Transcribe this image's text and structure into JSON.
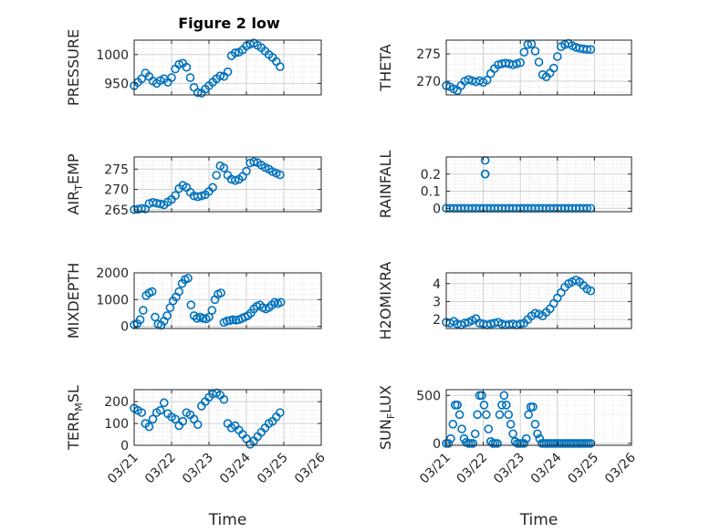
{
  "title": "Figure 2 low",
  "xlabel": "Time",
  "x_tick_labels": [
    "03/21",
    "03/22",
    "03/23",
    "03/24",
    "03/25",
    "03/26"
  ],
  "marker_color": "#0072bd",
  "chart_data": [
    {
      "type": "scatter",
      "ylabel": "PRESSURE",
      "ylim": [
        930,
        1025
      ],
      "yticks": [
        950,
        1000
      ],
      "ytick_labels": [
        "950",
        "1000"
      ],
      "x": [
        0,
        0.1,
        0.2,
        0.3,
        0.4,
        0.5,
        0.6,
        0.7,
        0.8,
        0.9,
        1.0,
        1.1,
        1.2,
        1.3,
        1.4,
        1.5,
        1.6,
        1.7,
        1.8,
        1.9,
        2.0,
        2.1,
        2.2,
        2.3,
        2.4,
        2.5,
        2.6,
        2.7,
        2.8,
        2.9,
        3.0,
        3.1,
        3.2,
        3.3,
        3.4,
        3.5,
        3.6,
        3.7,
        3.8,
        3.9
      ],
      "y": [
        946,
        952,
        958,
        968,
        962,
        954,
        950,
        955,
        958,
        952,
        960,
        975,
        983,
        985,
        978,
        960,
        943,
        934,
        933,
        940,
        946,
        952,
        958,
        963,
        962,
        970,
        998,
        1003,
        1004,
        1008,
        1015,
        1018,
        1020,
        1016,
        1012,
        1006,
        1000,
        995,
        988,
        979
      ]
    },
    {
      "type": "scatter",
      "ylabel": "THETA",
      "ylim": [
        267.5,
        277.5
      ],
      "yticks": [
        270,
        275
      ],
      "ytick_labels": [
        "270",
        "275"
      ],
      "x": [
        0,
        0.1,
        0.2,
        0.3,
        0.4,
        0.5,
        0.6,
        0.7,
        0.8,
        0.9,
        1.0,
        1.1,
        1.2,
        1.3,
        1.4,
        1.5,
        1.6,
        1.7,
        1.8,
        1.9,
        2.0,
        2.1,
        2.2,
        2.3,
        2.4,
        2.5,
        2.6,
        2.7,
        2.8,
        2.9,
        3.0,
        3.1,
        3.2,
        3.3,
        3.4,
        3.5,
        3.6,
        3.7,
        3.8,
        3.9
      ],
      "y": [
        269.2,
        269,
        268.6,
        268.3,
        269.2,
        270,
        270.3,
        270.1,
        269.9,
        270.1,
        269.8,
        270.2,
        271.4,
        272.3,
        273,
        273.2,
        273.3,
        273.2,
        273,
        273.2,
        273.4,
        275.3,
        276.7,
        276.8,
        275.5,
        273.5,
        271.2,
        270.8,
        271.5,
        272.4,
        274.5,
        276.3,
        276.7,
        276.9,
        276.5,
        276.2,
        276,
        275.9,
        275.8,
        275.8
      ]
    },
    {
      "type": "scatter",
      "ylabel": "AIR_TEMP",
      "ylim": [
        264.5,
        278
      ],
      "yticks": [
        265,
        270,
        275
      ],
      "ytick_labels": [
        "265",
        "270",
        "275"
      ],
      "x": [
        0,
        0.1,
        0.2,
        0.3,
        0.4,
        0.5,
        0.6,
        0.7,
        0.8,
        0.9,
        1.0,
        1.1,
        1.2,
        1.3,
        1.4,
        1.5,
        1.6,
        1.7,
        1.8,
        1.9,
        2.0,
        2.1,
        2.2,
        2.3,
        2.4,
        2.5,
        2.6,
        2.7,
        2.8,
        2.9,
        3.0,
        3.1,
        3.2,
        3.3,
        3.4,
        3.5,
        3.6,
        3.7,
        3.8,
        3.9
      ],
      "y": [
        265,
        265.1,
        265.3,
        265.2,
        266.5,
        266.8,
        266.6,
        266.4,
        266.2,
        266.9,
        267.5,
        268.5,
        270.2,
        271,
        270.5,
        269.3,
        268.4,
        268.2,
        268.4,
        268.7,
        269.5,
        270.5,
        273.5,
        275.8,
        275.3,
        273.5,
        272.5,
        272.2,
        272.5,
        273.2,
        274.5,
        276.5,
        276.8,
        276.6,
        276,
        275.4,
        275,
        274.4,
        274,
        273.6
      ]
    },
    {
      "type": "scatter",
      "ylabel": "RAINFALL",
      "ylim": [
        -0.02,
        0.3
      ],
      "yticks": [
        0,
        0.1,
        0.2
      ],
      "ytick_labels": [
        "0",
        "0.1",
        "0.2"
      ],
      "x": [
        0,
        0.1,
        0.2,
        0.3,
        0.4,
        0.5,
        0.6,
        0.7,
        0.8,
        0.9,
        1.0,
        1.05,
        1.05,
        1.05,
        1.1,
        1.2,
        1.3,
        1.4,
        1.5,
        1.6,
        1.7,
        1.8,
        1.9,
        2.0,
        2.1,
        2.2,
        2.3,
        2.4,
        2.5,
        2.6,
        2.7,
        2.8,
        2.9,
        3.0,
        3.1,
        3.2,
        3.3,
        3.4,
        3.5,
        3.6,
        3.7,
        3.8,
        3.9
      ],
      "y": [
        0,
        0,
        0,
        0,
        0,
        0,
        0,
        0,
        0,
        0,
        0,
        0.28,
        0.2,
        0.2,
        0,
        0,
        0,
        0,
        0,
        0,
        0,
        0,
        0,
        0,
        0,
        0,
        0,
        0,
        0,
        0,
        0,
        0,
        0,
        0,
        0,
        0,
        0,
        0,
        0,
        0,
        0,
        0,
        0
      ]
    },
    {
      "type": "scatter",
      "ylabel": "MIXDEPTH",
      "ylim": [
        -80,
        2000
      ],
      "yticks": [
        0,
        1000,
        2000
      ],
      "ytick_labels": [
        "0",
        "1000",
        "2000"
      ],
      "x": [
        0,
        0.08,
        0.16,
        0.24,
        0.32,
        0.4,
        0.48,
        0.56,
        0.64,
        0.72,
        0.8,
        0.88,
        0.96,
        1.04,
        1.12,
        1.2,
        1.28,
        1.36,
        1.44,
        1.52,
        1.6,
        1.68,
        1.76,
        1.84,
        1.92,
        2.0,
        2.08,
        2.16,
        2.24,
        2.32,
        2.4,
        2.48,
        2.56,
        2.64,
        2.72,
        2.8,
        2.88,
        2.96,
        3.04,
        3.12,
        3.2,
        3.28,
        3.36,
        3.44,
        3.52,
        3.6,
        3.68,
        3.76,
        3.84,
        3.92
      ],
      "y": [
        60,
        100,
        250,
        600,
        1150,
        1250,
        1300,
        350,
        80,
        40,
        200,
        400,
        700,
        950,
        1100,
        1300,
        1600,
        1750,
        1800,
        800,
        400,
        300,
        350,
        300,
        280,
        350,
        600,
        1000,
        1200,
        1250,
        150,
        200,
        220,
        250,
        230,
        250,
        300,
        350,
        400,
        500,
        650,
        750,
        800,
        700,
        650,
        700,
        800,
        900,
        850,
        900
      ]
    },
    {
      "type": "scatter",
      "ylabel": "H2OMIXRA",
      "ylim": [
        1.5,
        4.6
      ],
      "yticks": [
        2,
        3,
        4
      ],
      "ytick_labels": [
        "2",
        "3",
        "4"
      ],
      "x": [
        0,
        0.1,
        0.2,
        0.3,
        0.4,
        0.5,
        0.6,
        0.7,
        0.8,
        0.9,
        1.0,
        1.1,
        1.2,
        1.3,
        1.4,
        1.5,
        1.6,
        1.7,
        1.8,
        1.9,
        2.0,
        2.1,
        2.2,
        2.3,
        2.4,
        2.5,
        2.6,
        2.7,
        2.8,
        2.9,
        3.0,
        3.1,
        3.2,
        3.3,
        3.4,
        3.5,
        3.6,
        3.7,
        3.8,
        3.9
      ],
      "y": [
        1.85,
        1.8,
        1.9,
        1.75,
        1.7,
        1.8,
        1.85,
        1.95,
        2.05,
        1.8,
        1.75,
        1.7,
        1.75,
        1.8,
        1.85,
        1.75,
        1.7,
        1.72,
        1.75,
        1.7,
        1.75,
        1.8,
        2.0,
        2.2,
        2.35,
        2.3,
        2.2,
        2.4,
        2.6,
        2.9,
        3.2,
        3.5,
        3.8,
        4.0,
        4.1,
        4.2,
        4.1,
        3.9,
        3.7,
        3.6
      ]
    },
    {
      "type": "scatter",
      "ylabel": "TERR_MSL",
      "ylim": [
        0,
        255
      ],
      "yticks": [
        0,
        100,
        200
      ],
      "ytick_labels": [
        "0",
        "100",
        "200"
      ],
      "x": [
        0,
        0.1,
        0.2,
        0.3,
        0.4,
        0.5,
        0.6,
        0.7,
        0.8,
        0.9,
        1.0,
        1.1,
        1.2,
        1.3,
        1.4,
        1.5,
        1.6,
        1.7,
        1.8,
        1.9,
        2.0,
        2.1,
        2.2,
        2.3,
        2.4,
        2.5,
        2.6,
        2.7,
        2.8,
        2.9,
        3.0,
        3.1,
        3.2,
        3.3,
        3.4,
        3.5,
        3.6,
        3.7,
        3.8,
        3.9
      ],
      "y": [
        170,
        160,
        150,
        100,
        85,
        120,
        150,
        160,
        195,
        145,
        130,
        120,
        90,
        110,
        150,
        140,
        120,
        95,
        180,
        200,
        220,
        235,
        240,
        230,
        210,
        100,
        80,
        90,
        70,
        50,
        30,
        5,
        20,
        40,
        60,
        80,
        100,
        110,
        130,
        150
      ]
    },
    {
      "type": "scatter",
      "ylabel": "SUN_FLUX",
      "ylim": [
        -20,
        560
      ],
      "yticks": [
        0,
        500
      ],
      "ytick_labels": [
        "0",
        "500"
      ],
      "x": [
        0,
        0.06,
        0.12,
        0.18,
        0.24,
        0.3,
        0.36,
        0.42,
        0.48,
        0.54,
        0.6,
        0.66,
        0.72,
        0.78,
        0.84,
        0.9,
        0.96,
        1.02,
        1.08,
        1.14,
        1.2,
        1.26,
        1.32,
        1.38,
        1.44,
        1.5,
        1.56,
        1.62,
        1.68,
        1.74,
        1.8,
        1.86,
        1.92,
        1.98,
        2.04,
        2.1,
        2.16,
        2.22,
        2.28,
        2.34,
        2.4,
        2.46,
        2.52,
        2.58,
        2.64,
        2.7,
        2.76,
        2.82,
        2.88,
        2.94,
        3.0,
        3.06,
        3.12,
        3.18,
        3.24,
        3.3,
        3.36,
        3.42,
        3.48,
        3.54,
        3.6,
        3.66,
        3.72,
        3.78,
        3.84,
        3.9
      ],
      "y": [
        0,
        0,
        50,
        200,
        400,
        400,
        300,
        150,
        50,
        10,
        0,
        0,
        0,
        100,
        300,
        500,
        500,
        400,
        300,
        150,
        20,
        0,
        0,
        0,
        300,
        400,
        500,
        400,
        300,
        200,
        100,
        20,
        0,
        0,
        0,
        0,
        50,
        300,
        380,
        380,
        200,
        100,
        50,
        0,
        0,
        0,
        0,
        0,
        0,
        0,
        0,
        0,
        0,
        0,
        0,
        0,
        0,
        0,
        0,
        0,
        0,
        0,
        0,
        0,
        0,
        0
      ]
    }
  ]
}
